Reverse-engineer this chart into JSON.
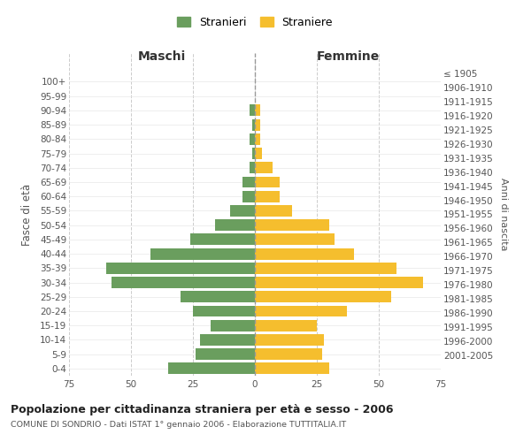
{
  "age_groups": [
    "0-4",
    "5-9",
    "10-14",
    "15-19",
    "20-24",
    "25-29",
    "30-34",
    "35-39",
    "40-44",
    "45-49",
    "50-54",
    "55-59",
    "60-64",
    "65-69",
    "70-74",
    "75-79",
    "80-84",
    "85-89",
    "90-94",
    "95-99",
    "100+"
  ],
  "birth_years": [
    "2001-2005",
    "1996-2000",
    "1991-1995",
    "1986-1990",
    "1981-1985",
    "1976-1980",
    "1971-1975",
    "1966-1970",
    "1961-1965",
    "1956-1960",
    "1951-1955",
    "1946-1950",
    "1941-1945",
    "1936-1940",
    "1931-1935",
    "1926-1930",
    "1921-1925",
    "1916-1920",
    "1911-1915",
    "1906-1910",
    "≤ 1905"
  ],
  "maschi": [
    35,
    24,
    22,
    18,
    25,
    30,
    58,
    60,
    42,
    26,
    16,
    10,
    5,
    5,
    2,
    1,
    2,
    1,
    2,
    0,
    0
  ],
  "femmine": [
    30,
    27,
    28,
    25,
    37,
    55,
    68,
    57,
    40,
    32,
    30,
    15,
    10,
    10,
    7,
    3,
    2,
    2,
    2,
    0,
    0
  ],
  "color_maschi": "#6a9e5e",
  "color_femmine": "#f5be2e",
  "title": "Popolazione per cittadinanza straniera per età e sesso - 2006",
  "subtitle": "COMUNE DI SONDRIO - Dati ISTAT 1° gennaio 2006 - Elaborazione TUTTITALIA.IT",
  "ylabel_left": "Fasce di età",
  "ylabel_right": "Anni di nascita",
  "xlabel_maschi": "Maschi",
  "xlabel_femmine": "Femmine",
  "legend_maschi": "Stranieri",
  "legend_femmine": "Straniere",
  "xlim": 75,
  "background_color": "#ffffff",
  "grid_color": "#cccccc"
}
